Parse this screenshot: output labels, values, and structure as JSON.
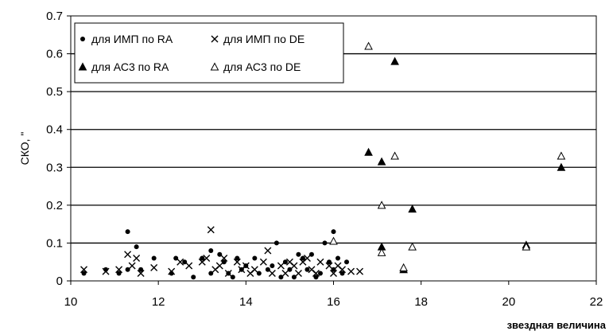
{
  "chart_data": {
    "type": "scatter",
    "title": "",
    "xlabel": "звездная величина",
    "ylabel": "СКО, \"",
    "xlim": [
      10,
      22
    ],
    "ylim": [
      0,
      0.7
    ],
    "xticks": [
      "10",
      "12",
      "14",
      "16",
      "18",
      "20",
      "22"
    ],
    "yticks": [
      "0",
      "0.1",
      "0.2",
      "0.3",
      "0.4",
      "0.5",
      "0.6",
      "0.7"
    ],
    "grid": "horizontal",
    "legend_position": "top-left",
    "series": [
      {
        "name": "для ИМП по RA",
        "marker": "dot",
        "points": [
          [
            10.3,
            0.02
          ],
          [
            10.8,
            0.03
          ],
          [
            11.1,
            0.02
          ],
          [
            11.3,
            0.13
          ],
          [
            11.3,
            0.03
          ],
          [
            11.5,
            0.09
          ],
          [
            11.6,
            0.03
          ],
          [
            11.9,
            0.06
          ],
          [
            12.3,
            0.02
          ],
          [
            12.4,
            0.06
          ],
          [
            12.6,
            0.05
          ],
          [
            12.8,
            0.01
          ],
          [
            13.0,
            0.06
          ],
          [
            13.2,
            0.08
          ],
          [
            13.2,
            0.02
          ],
          [
            13.4,
            0.07
          ],
          [
            13.5,
            0.05
          ],
          [
            13.6,
            0.02
          ],
          [
            13.7,
            0.01
          ],
          [
            13.8,
            0.06
          ],
          [
            13.9,
            0.03
          ],
          [
            14.0,
            0.04
          ],
          [
            14.2,
            0.06
          ],
          [
            14.3,
            0.02
          ],
          [
            14.5,
            0.03
          ],
          [
            14.6,
            0.04
          ],
          [
            14.7,
            0.1
          ],
          [
            14.8,
            0.01
          ],
          [
            14.9,
            0.05
          ],
          [
            15.0,
            0.03
          ],
          [
            15.1,
            0.01
          ],
          [
            15.2,
            0.07
          ],
          [
            15.3,
            0.06
          ],
          [
            15.4,
            0.03
          ],
          [
            15.5,
            0.07
          ],
          [
            15.6,
            0.01
          ],
          [
            15.7,
            0.02
          ],
          [
            15.8,
            0.1
          ],
          [
            15.9,
            0.05
          ],
          [
            16.0,
            0.13
          ],
          [
            16.0,
            0.03
          ],
          [
            16.1,
            0.06
          ],
          [
            16.2,
            0.02
          ],
          [
            16.3,
            0.05
          ]
        ]
      },
      {
        "name": "для ИМП по DE",
        "marker": "cross",
        "points": [
          [
            10.3,
            0.03
          ],
          [
            10.8,
            0.025
          ],
          [
            11.1,
            0.03
          ],
          [
            11.3,
            0.07
          ],
          [
            11.4,
            0.04
          ],
          [
            11.5,
            0.06
          ],
          [
            11.6,
            0.02
          ],
          [
            11.9,
            0.035
          ],
          [
            12.3,
            0.025
          ],
          [
            12.5,
            0.05
          ],
          [
            12.7,
            0.04
          ],
          [
            13.0,
            0.05
          ],
          [
            13.1,
            0.06
          ],
          [
            13.2,
            0.135
          ],
          [
            13.3,
            0.03
          ],
          [
            13.4,
            0.04
          ],
          [
            13.5,
            0.06
          ],
          [
            13.6,
            0.02
          ],
          [
            13.8,
            0.05
          ],
          [
            13.9,
            0.03
          ],
          [
            14.0,
            0.04
          ],
          [
            14.1,
            0.02
          ],
          [
            14.2,
            0.03
          ],
          [
            14.4,
            0.05
          ],
          [
            14.5,
            0.08
          ],
          [
            14.6,
            0.02
          ],
          [
            14.8,
            0.04
          ],
          [
            14.9,
            0.02
          ],
          [
            15.0,
            0.05
          ],
          [
            15.1,
            0.04
          ],
          [
            15.2,
            0.02
          ],
          [
            15.3,
            0.05
          ],
          [
            15.4,
            0.06
          ],
          [
            15.5,
            0.03
          ],
          [
            15.6,
            0.02
          ],
          [
            15.7,
            0.05
          ],
          [
            15.9,
            0.04
          ],
          [
            16.0,
            0.02
          ],
          [
            16.1,
            0.04
          ],
          [
            16.2,
            0.03
          ],
          [
            16.4,
            0.025
          ],
          [
            16.6,
            0.025
          ]
        ]
      },
      {
        "name": "для АС3 по RA",
        "marker": "triangle-filled",
        "points": [
          [
            16.8,
            0.34
          ],
          [
            17.1,
            0.315
          ],
          [
            17.1,
            0.09
          ],
          [
            17.4,
            0.58
          ],
          [
            17.6,
            0.03
          ],
          [
            17.8,
            0.19
          ],
          [
            20.4,
            0.095
          ],
          [
            21.2,
            0.3
          ]
        ]
      },
      {
        "name": "для АС3 по DE",
        "marker": "triangle-open",
        "points": [
          [
            16.8,
            0.62
          ],
          [
            17.1,
            0.2
          ],
          [
            17.1,
            0.075
          ],
          [
            17.4,
            0.33
          ],
          [
            17.6,
            0.035
          ],
          [
            17.8,
            0.09
          ],
          [
            20.4,
            0.09
          ],
          [
            21.2,
            0.33
          ],
          [
            16.0,
            0.105
          ]
        ]
      }
    ]
  }
}
